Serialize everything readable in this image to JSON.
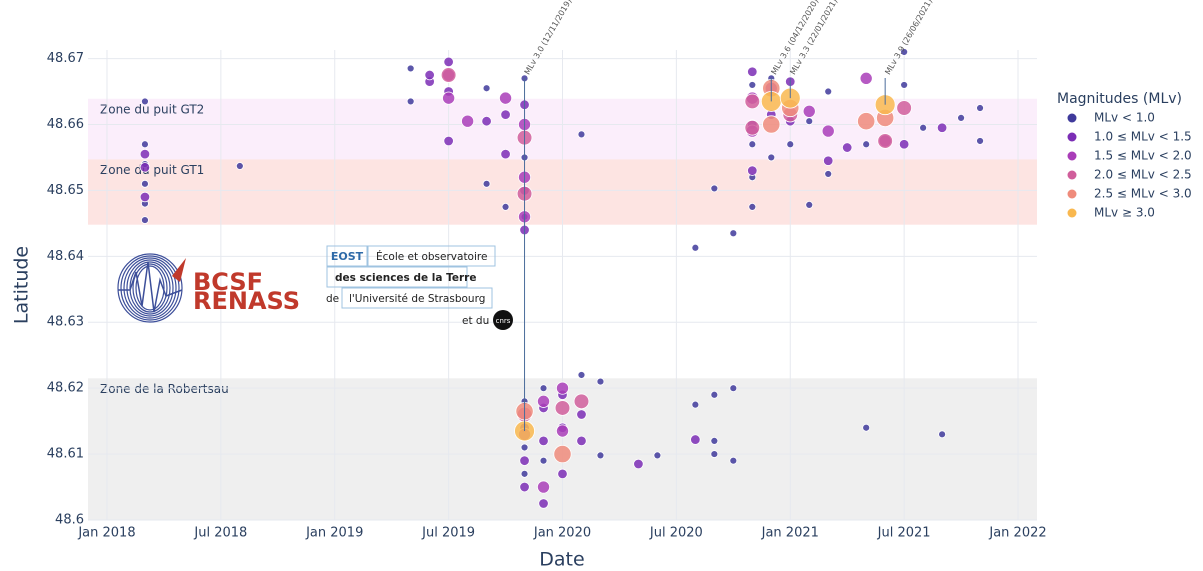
{
  "chart_data": {
    "type": "scatter",
    "x_label": "Date",
    "y_label": "Latitude",
    "legend_title": "Magnitudes (MLv)",
    "legend_position": "right",
    "grid": true,
    "xlim": [
      "2017-12",
      "2022-02"
    ],
    "ylim": [
      48.6,
      48.6713
    ],
    "xticks": [
      {
        "value": "2018-01",
        "label": "Jan 2018"
      },
      {
        "value": "2018-07",
        "label": "Jul 2018"
      },
      {
        "value": "2019-01",
        "label": "Jan 2019"
      },
      {
        "value": "2019-07",
        "label": "Jul 2019"
      },
      {
        "value": "2020-01",
        "label": "Jan 2020"
      },
      {
        "value": "2020-07",
        "label": "Jul 2020"
      },
      {
        "value": "2021-01",
        "label": "Jan 2021"
      },
      {
        "value": "2021-07",
        "label": "Jul 2021"
      },
      {
        "value": "2022-01",
        "label": "Jan 2022"
      }
    ],
    "yticks": [
      48.6,
      48.61,
      48.62,
      48.63,
      48.64,
      48.65,
      48.66,
      48.67
    ],
    "zones": [
      {
        "name": "Zone du puit GT2",
        "ylim": [
          48.6547,
          48.6639
        ],
        "color": "#fbeefb"
      },
      {
        "name": "Zone du puit GT1",
        "ylim": [
          48.6448,
          48.6547
        ],
        "color": "#fde4e2"
      },
      {
        "name": "Zone de la Robertsau",
        "ylim": [
          48.6,
          48.6215
        ],
        "color": "#efefef"
      }
    ],
    "annotations": [
      {
        "text": "MLv 3.0 (12/11/2019)",
        "x": "2019-11",
        "y": 48.6135
      },
      {
        "text": "MLv 3.6 (04/12/2020)",
        "x": "2020-12",
        "y": 48.6635
      },
      {
        "text": "MLv 3.3 (22/01/2021)",
        "x": "2021-01",
        "y": 48.664
      },
      {
        "text": "MLv 3.9 (26/06/2021)",
        "x": "2021-06",
        "y": 48.663
      }
    ],
    "logos": {
      "bcsf": [
        "BCSF",
        "RENASS"
      ],
      "eost": [
        "EOST",
        "École et observatoire",
        "des sciences de la Terre",
        "de",
        "l'Université de Strasbourg",
        "et du",
        "cnrs"
      ]
    },
    "series": [
      {
        "name": "MLv < 1.0",
        "color": "#3f3a9b",
        "x": [
          "2018-03",
          "2018-03",
          "2018-03",
          "2018-03",
          "2018-03",
          "2018-03",
          "2018-08",
          "2019-05",
          "2019-05",
          "2019-09",
          "2019-09",
          "2019-10",
          "2019-11",
          "2019-11",
          "2019-11",
          "2019-11",
          "2019-11",
          "2019-11",
          "2019-12",
          "2019-12",
          "2020-02",
          "2020-02",
          "2020-03",
          "2020-03",
          "2020-06",
          "2020-08",
          "2020-08",
          "2020-09",
          "2020-09",
          "2020-09",
          "2020-09",
          "2020-10",
          "2020-10",
          "2020-10",
          "2020-11",
          "2020-11",
          "2020-11",
          "2020-11",
          "2020-12",
          "2020-12",
          "2021-01",
          "2021-01",
          "2021-02",
          "2021-02",
          "2021-03",
          "2021-03",
          "2021-05",
          "2021-05",
          "2021-07",
          "2021-07",
          "2021-08",
          "2021-09",
          "2021-10",
          "2021-11",
          "2021-11"
        ],
        "y": [
          48.6635,
          48.657,
          48.654,
          48.651,
          48.648,
          48.6455,
          48.6537,
          48.6685,
          48.6635,
          48.6655,
          48.651,
          48.6475,
          48.667,
          48.655,
          48.646,
          48.618,
          48.611,
          48.607,
          48.62,
          48.609,
          48.6585,
          48.622,
          48.621,
          48.6098,
          48.6098,
          48.6175,
          48.6413,
          48.6503,
          48.619,
          48.612,
          48.61,
          48.6435,
          48.62,
          48.609,
          48.666,
          48.657,
          48.652,
          48.6475,
          48.667,
          48.655,
          48.661,
          48.657,
          48.6478,
          48.6605,
          48.6525,
          48.665,
          48.614,
          48.657,
          48.671,
          48.666,
          48.6595,
          48.613,
          48.661,
          48.6625,
          48.6575
        ]
      },
      {
        "name": "1.0 ≤ MLv < 1.5",
        "color": "#7b2db5",
        "x": [
          "2018-03",
          "2018-03",
          "2018-03",
          "2019-06",
          "2019-06",
          "2019-07",
          "2019-07",
          "2019-07",
          "2019-09",
          "2019-10",
          "2019-10",
          "2019-11",
          "2019-11",
          "2019-11",
          "2019-11",
          "2019-11",
          "2019-11",
          "2019-12",
          "2019-12",
          "2019-12",
          "2020-01",
          "2020-01",
          "2020-01",
          "2020-02",
          "2020-02",
          "2020-05",
          "2020-08",
          "2020-11",
          "2020-11",
          "2020-11",
          "2020-12",
          "2021-01",
          "2021-01",
          "2021-03",
          "2021-04",
          "2021-07",
          "2021-09"
        ],
        "y": [
          48.6555,
          48.6535,
          48.649,
          48.6665,
          48.6675,
          48.6695,
          48.6575,
          48.665,
          48.6605,
          48.6615,
          48.6555,
          48.663,
          48.65,
          48.644,
          48.614,
          48.609,
          48.605,
          48.617,
          48.612,
          48.6025,
          48.619,
          48.614,
          48.607,
          48.616,
          48.612,
          48.6085,
          48.6122,
          48.66,
          48.668,
          48.653,
          48.6615,
          48.6605,
          48.6665,
          48.6545,
          48.6565,
          48.657,
          48.6595
        ]
      },
      {
        "name": "1.5 ≤ MLv < 2.0",
        "color": "#a93db8",
        "x": [
          "2019-07",
          "2019-07",
          "2019-08",
          "2019-10",
          "2019-11",
          "2019-11",
          "2019-11",
          "2019-11",
          "2019-12",
          "2019-12",
          "2020-01",
          "2020-01",
          "2020-11",
          "2020-11",
          "2020-12",
          "2021-02",
          "2021-03",
          "2021-05",
          "2021-06"
        ],
        "y": [
          48.664,
          48.6675,
          48.6605,
          48.664,
          48.66,
          48.652,
          48.646,
          48.613,
          48.618,
          48.605,
          48.6135,
          48.62,
          48.664,
          48.659,
          48.6655,
          48.662,
          48.659,
          48.667,
          48.6575
        ]
      },
      {
        "name": "2.0 ≤ MLv < 2.5",
        "color": "#d05e9b",
        "x": [
          "2019-07",
          "2019-11",
          "2019-11",
          "2019-11",
          "2020-01",
          "2020-02",
          "2020-11",
          "2020-11",
          "2021-01",
          "2021-06",
          "2021-07"
        ],
        "y": [
          48.6675,
          48.658,
          48.6495,
          48.616,
          48.617,
          48.618,
          48.6635,
          48.6595,
          48.6615,
          48.6575,
          48.6625
        ]
      },
      {
        "name": "2.5 ≤ MLv < 3.0",
        "color": "#ef8b7b",
        "x": [
          "2019-11",
          "2020-01",
          "2020-12",
          "2020-12",
          "2021-01",
          "2021-05",
          "2021-06"
        ],
        "y": [
          48.6165,
          48.61,
          48.6655,
          48.66,
          48.6625,
          48.6605,
          48.661
        ]
      },
      {
        "name": "MLv ≥ 3.0",
        "color": "#f9b84f",
        "x": [
          "2019-11",
          "2020-12",
          "2021-01",
          "2021-06"
        ],
        "y": [
          48.6135,
          48.6635,
          48.664,
          48.663
        ]
      }
    ]
  }
}
